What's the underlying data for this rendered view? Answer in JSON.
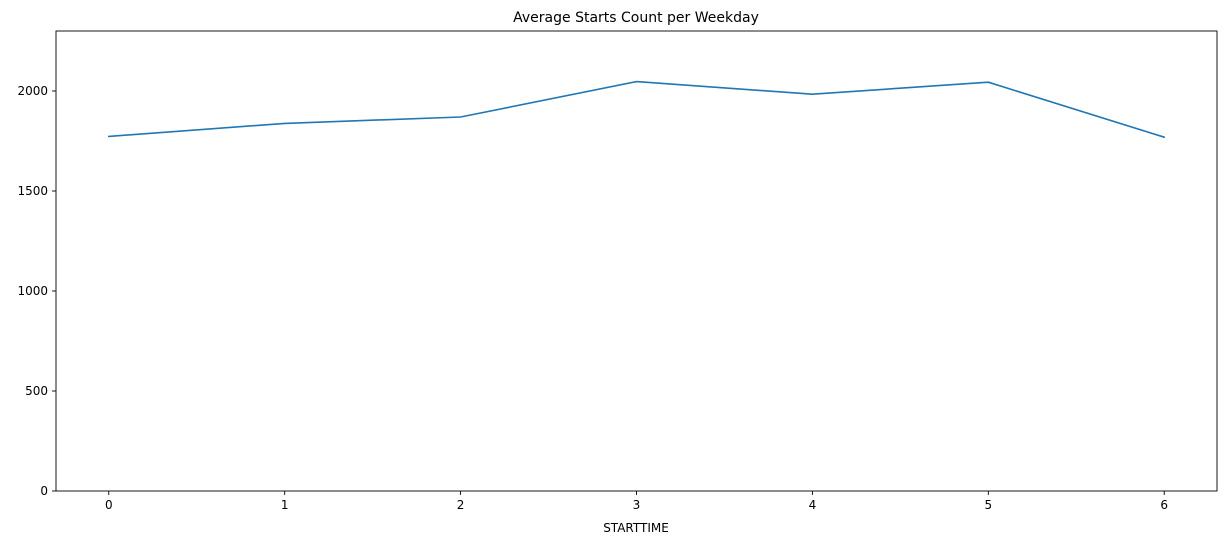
{
  "chart_data": {
    "type": "line",
    "title": "Average Starts Count per Weekday",
    "xlabel": "STARTTIME",
    "ylabel": "",
    "x": [
      0,
      1,
      2,
      3,
      4,
      5,
      6
    ],
    "x_tick_labels": [
      "0",
      "1",
      "2",
      "3",
      "4",
      "5",
      "6"
    ],
    "y_ticks": [
      0,
      500,
      1000,
      1500,
      2000
    ],
    "y_tick_labels": [
      "0",
      "500",
      "1000",
      "1500",
      "2000"
    ],
    "xlim": [
      -0.3,
      6.3
    ],
    "ylim": [
      0,
      2300
    ],
    "grid": false,
    "series": [
      {
        "values": [
          1773,
          1838,
          1870,
          2047,
          1984,
          2044,
          1769
        ],
        "color": "#1f77b4"
      }
    ]
  }
}
